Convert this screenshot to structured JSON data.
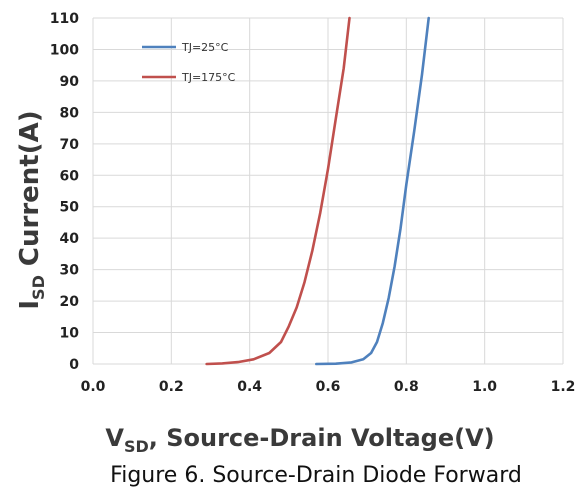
{
  "chart_data": {
    "type": "line",
    "title": "",
    "caption": "Figure 6. Source-Drain Diode Forward",
    "xlabel": {
      "main": "V",
      "sub": "SD",
      "rest": ", Source-Drain Voltage(V)"
    },
    "ylabel": {
      "main": "I",
      "sub": "SD",
      "rest": " Current(A)"
    },
    "xlim": [
      0,
      1.2
    ],
    "ylim": [
      0,
      110
    ],
    "x_ticks": [
      "0.0",
      "0.2",
      "0.4",
      "0.6",
      "0.8",
      "1.0",
      "1.2"
    ],
    "y_ticks": [
      "0",
      "10",
      "20",
      "30",
      "40",
      "50",
      "60",
      "70",
      "80",
      "90",
      "100",
      "110"
    ],
    "grid": "horizontal and vertical",
    "legend_position": "top-left",
    "series": [
      {
        "name": "TJ=25°C",
        "color": "#4f81bd",
        "points": [
          [
            0.57,
            0
          ],
          [
            0.62,
            0.1
          ],
          [
            0.66,
            0.5
          ],
          [
            0.69,
            1.5
          ],
          [
            0.71,
            3.5
          ],
          [
            0.725,
            7
          ],
          [
            0.74,
            13
          ],
          [
            0.755,
            21
          ],
          [
            0.77,
            31
          ],
          [
            0.785,
            43
          ],
          [
            0.8,
            57
          ],
          [
            0.82,
            74
          ],
          [
            0.84,
            92
          ],
          [
            0.857,
            110
          ]
        ]
      },
      {
        "name": "TJ=175°C",
        "color": "#c0504d",
        "points": [
          [
            0.29,
            0
          ],
          [
            0.33,
            0.2
          ],
          [
            0.37,
            0.6
          ],
          [
            0.41,
            1.5
          ],
          [
            0.45,
            3.5
          ],
          [
            0.48,
            7
          ],
          [
            0.5,
            12
          ],
          [
            0.52,
            18
          ],
          [
            0.54,
            26
          ],
          [
            0.56,
            36
          ],
          [
            0.58,
            48
          ],
          [
            0.6,
            62
          ],
          [
            0.62,
            78
          ],
          [
            0.64,
            94
          ],
          [
            0.655,
            110
          ]
        ]
      }
    ]
  }
}
